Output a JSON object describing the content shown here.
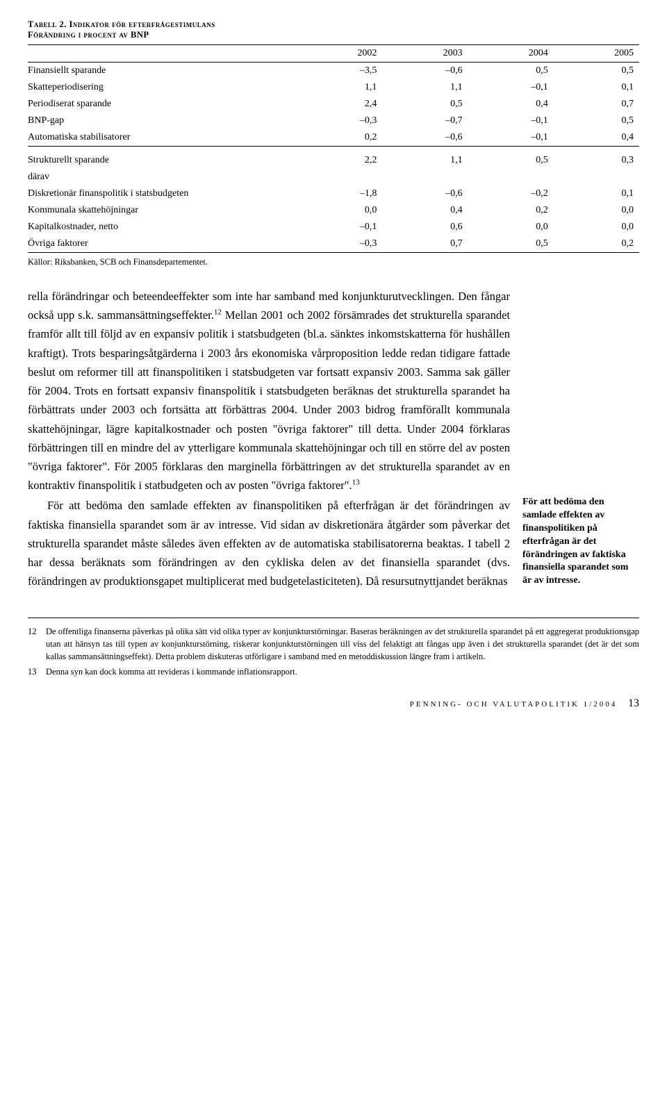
{
  "table": {
    "title_prefix": "Tabell 2.",
    "title_rest": " Indikator för efterfrågestimulans",
    "subtitle": "Förändring i procent av BNP",
    "years": [
      "2002",
      "2003",
      "2004",
      "2005"
    ],
    "rows_a": [
      {
        "label": "Finansiellt sparande",
        "vals": [
          "–3,5",
          "–0,6",
          "0,5",
          "0,5"
        ]
      },
      {
        "label": "Skatteperiodisering",
        "vals": [
          "1,1",
          "1,1",
          "–0,1",
          "0,1"
        ]
      },
      {
        "label": "Periodiserat sparande",
        "vals": [
          "2,4",
          "0,5",
          "0,4",
          "0,7"
        ]
      },
      {
        "label": "BNP-gap",
        "vals": [
          "–0,3",
          "–0,7",
          "–0,1",
          "0,5"
        ]
      },
      {
        "label": "Automatiska stabilisatorer",
        "vals": [
          "0,2",
          "–0,6",
          "–0,1",
          "0,4"
        ]
      }
    ],
    "rows_b": [
      {
        "label": "Strukturellt sparande",
        "vals": [
          "2,2",
          "1,1",
          "0,5",
          "0,3"
        ],
        "indent": false
      },
      {
        "label": "därav",
        "vals": [
          "",
          "",
          "",
          ""
        ],
        "indent": false
      },
      {
        "label": "Diskretionär finanspolitik i statsbudgeten",
        "vals": [
          "–1,8",
          "–0,6",
          "–0,2",
          "0,1"
        ],
        "indent": false
      },
      {
        "label": "Kommunala skattehöjningar",
        "vals": [
          "0,0",
          "0,4",
          "0,2",
          "0,0"
        ],
        "indent": false
      },
      {
        "label": "Kapitalkostnader, netto",
        "vals": [
          "–0,1",
          "0,6",
          "0,0",
          "0,0"
        ],
        "indent": false
      },
      {
        "label": "Övriga faktorer",
        "vals": [
          "–0,3",
          "0,7",
          "0,5",
          "0,2"
        ],
        "indent": false
      }
    ],
    "sources": "Källor: Riksbanken, SCB och Finansdepartementet."
  },
  "body": {
    "p1_a": "rella förändringar och beteendeeffekter som inte har samband med konjunkturutvecklingen. Den fångar också upp s.k. sammansättningseffekter.",
    "p1_sup1": "12",
    "p1_b": " Mellan 2001 och 2002 försämrades det strukturella sparandet framför allt till följd av en expansiv politik i statsbudgeten (bl.a. sänktes inkomstskatterna för hushållen kraftigt). Trots besparingsåtgärderna i 2003 års ekonomiska vårproposition ledde redan tidigare fattade beslut om reformer till att finanspolitiken i statsbudgeten var fortsatt expansiv 2003. Samma sak gäller för 2004. Trots en fortsatt expansiv finanspolitik i statsbudgeten beräknas det strukturella sparandet ha förbättrats under 2003 och fortsätta att förbättras 2004. Under 2003 bidrog framförallt kommunala skattehöjningar, lägre kapitalkostnader och posten \"övriga faktorer\" till detta. Under 2004 förklaras förbättringen till en mindre del av ytterligare kommunala skattehöjningar och till en större del av posten \"övriga faktorer\". För 2005 förklaras den marginella förbättringen av det strukturella sparandet av en kontraktiv finanspolitik i statbudgeten och av posten \"övriga faktorer\".",
    "p1_sup2": "13",
    "p2": "För att bedöma den samlade effekten av finanspolitiken på efterfrågan är det förändringen av faktiska finansiella sparandet som är av intresse. Vid sidan av diskretionära åtgärder som påverkar det strukturella sparandet måste således även effekten av de automatiska stabilisatorerna beaktas. I tabell 2 har dessa beräknats som förändringen av den cykliska delen av det finansiella sparandet (dvs. förändringen av produktionsgapet multiplicerat med budgetelasticiteten). Då resursutnyttjandet beräknas"
  },
  "margin_note": "För att bedöma den samlade effekten av finanspolitiken på efterfrågan är det förändringen av faktiska finansiella sparandet som är av intresse.",
  "footnotes": [
    {
      "num": "12",
      "text": "De offentliga finanserna påverkas på olika sätt vid olika typer av konjunkturstörningar. Baseras beräkningen av det strukturella sparandet på ett aggregerat produktionsgap utan att hänsyn tas till typen av konjunkturstörning, riskerar konjunkturstörningen till viss del felaktigt att fångas upp även i det strukturella sparandet (det är det som kallas sammansättningseffekt). Detta problem diskuteras utförligare i samband med en metoddiskussion längre fram i artikeln."
    },
    {
      "num": "13",
      "text": "Denna syn kan dock komma att revideras i kommande inflationsrapport."
    }
  ],
  "footer": {
    "journal": "PENNING- OCH VALUTAPOLITIK 1/2004",
    "page": "13"
  }
}
